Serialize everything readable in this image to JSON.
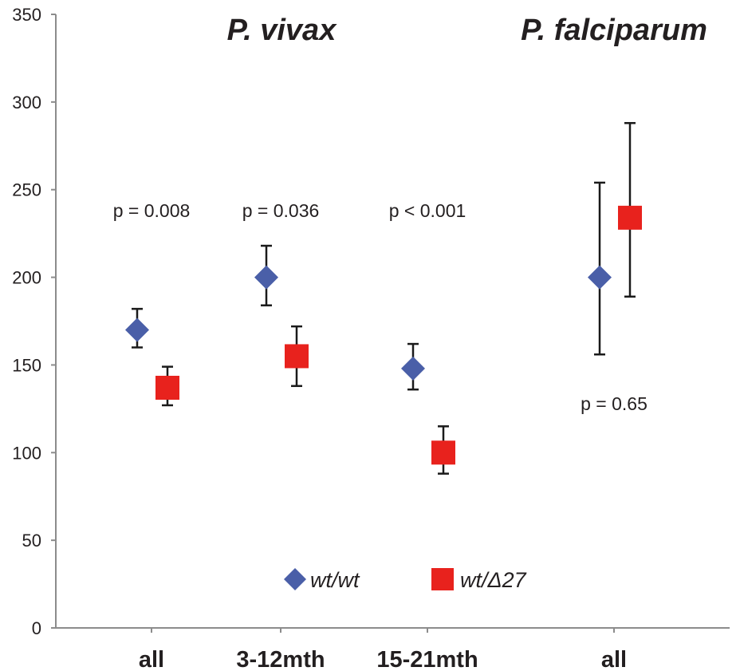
{
  "chart_data": {
    "type": "scatter",
    "ylim": [
      0,
      350
    ],
    "yticks": [
      "0",
      "50",
      "100",
      "150",
      "200",
      "250",
      "300",
      "350"
    ],
    "categories": [
      "all",
      "3-12mth",
      "15-21mth",
      "all"
    ],
    "group_headers": [
      "P. vivax",
      "P. falciparum"
    ],
    "series": [
      {
        "name": "wt/wt",
        "marker": "diamond",
        "color": "#4a5fa8",
        "points": [
          {
            "category": "all",
            "y": 170,
            "err_low": 160,
            "err_high": 182
          },
          {
            "category": "3-12mth",
            "y": 200,
            "err_low": 184,
            "err_high": 218
          },
          {
            "category": "15-21mth",
            "y": 148,
            "err_low": 136,
            "err_high": 162
          },
          {
            "category": "all",
            "y": 200,
            "err_low": 156,
            "err_high": 254
          }
        ]
      },
      {
        "name": "wt/Δ27",
        "marker": "square",
        "color": "#e8221d",
        "points": [
          {
            "category": "all",
            "y": 137,
            "err_low": 127,
            "err_high": 149
          },
          {
            "category": "3-12mth",
            "y": 155,
            "err_low": 138,
            "err_high": 172
          },
          {
            "category": "15-21mth",
            "y": 100,
            "err_low": 88,
            "err_high": 115
          },
          {
            "category": "all",
            "y": 234,
            "err_low": 189,
            "err_high": 288
          }
        ]
      }
    ],
    "annotations": [
      "p = 0.008",
      "p = 0.036",
      "p < 0.001",
      "p = 0.65"
    ],
    "legend_position": "bottom-center",
    "grid": false
  }
}
